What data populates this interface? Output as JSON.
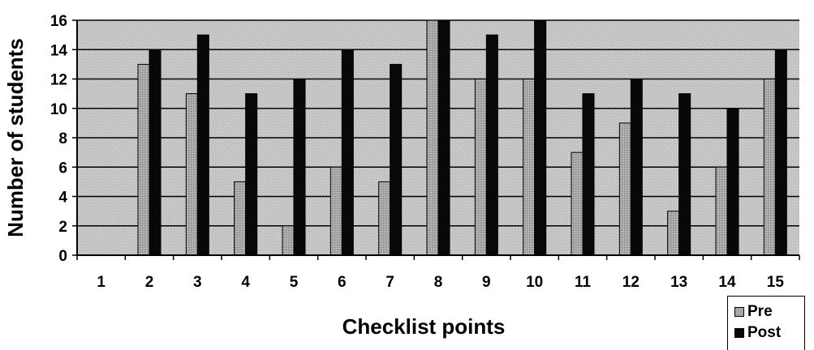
{
  "chart_data": {
    "type": "bar",
    "xlabel": "Checklist points",
    "ylabel": "Number of students",
    "categories": [
      "1",
      "2",
      "3",
      "4",
      "5",
      "6",
      "7",
      "8",
      "9",
      "10",
      "11",
      "12",
      "13",
      "14",
      "15"
    ],
    "series": [
      {
        "name": "Pre",
        "values": [
          0,
          13,
          11,
          5,
          2,
          6,
          5,
          16,
          12,
          12,
          7,
          9,
          3,
          6,
          12
        ]
      },
      {
        "name": "Post",
        "values": [
          0,
          14,
          15,
          11,
          12,
          14,
          13,
          16,
          15,
          16,
          11,
          12,
          11,
          10,
          14
        ]
      }
    ],
    "ylim": [
      0,
      16
    ],
    "yticks": [
      "0",
      "2",
      "4",
      "6",
      "8",
      "10",
      "12",
      "14",
      "16"
    ],
    "grid": true,
    "legend_position": "bottom-right",
    "colors": {
      "pre": "#a8a8a8",
      "post": "#080808",
      "plot_bg": "#c9c9c9",
      "gridline": "#000000"
    }
  }
}
